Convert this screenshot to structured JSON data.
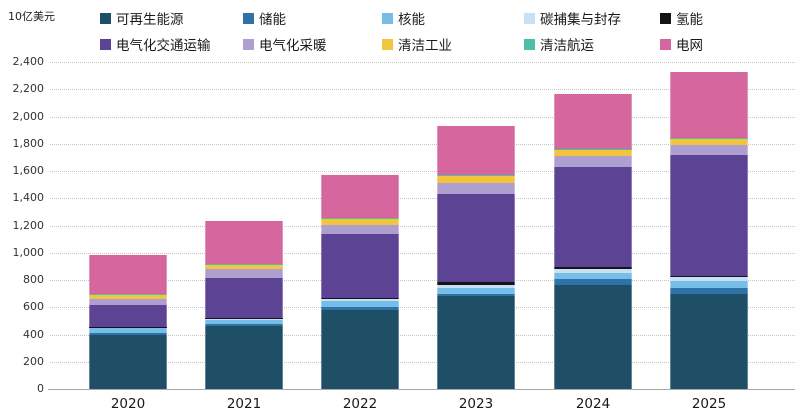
{
  "unit_label": "10亿美元",
  "chart_data": {
    "type": "bar",
    "stacked": true,
    "title": "",
    "xlabel": "",
    "ylabel": "10亿美元",
    "ylim": [
      0,
      2400
    ],
    "ytick_step": 200,
    "grid": true,
    "legend_position": "top",
    "categories": [
      "2020",
      "2021",
      "2022",
      "2023",
      "2024",
      "2025"
    ],
    "series": [
      {
        "name": "可再生能源",
        "color": "#1F4F66",
        "values": [
          400,
          465,
          580,
          680,
          760,
          700
        ]
      },
      {
        "name": "储能",
        "color": "#2E73A8",
        "values": [
          10,
          10,
          20,
          20,
          45,
          45
        ]
      },
      {
        "name": "核能",
        "color": "#76BDE8",
        "values": [
          35,
          35,
          45,
          45,
          45,
          50
        ]
      },
      {
        "name": "碳捕集与封存",
        "color": "#C8E0F4",
        "values": [
          10,
          10,
          15,
          20,
          30,
          25
        ]
      },
      {
        "name": "氢能",
        "color": "#141414",
        "values": [
          3,
          3,
          5,
          20,
          15,
          10
        ]
      },
      {
        "name": "电气化交通运输",
        "color": "#5C4394",
        "values": [
          160,
          290,
          470,
          645,
          735,
          885
        ]
      },
      {
        "name": "电气化采暖",
        "color": "#AF9FD0",
        "values": [
          45,
          70,
          70,
          80,
          80,
          75
        ]
      },
      {
        "name": "清洁工业",
        "color": "#F3C53F",
        "values": [
          30,
          35,
          45,
          55,
          50,
          50
        ]
      },
      {
        "name": "清洁航运",
        "color": "#4CBFA6",
        "values": [
          2,
          2,
          3,
          3,
          4,
          4
        ]
      },
      {
        "name": "电网",
        "color": "#D5669E",
        "values": [
          290,
          310,
          320,
          360,
          400,
          480
        ]
      }
    ],
    "totals": [
      985,
      1230,
      1573,
      1928,
      2164,
      2324
    ]
  }
}
